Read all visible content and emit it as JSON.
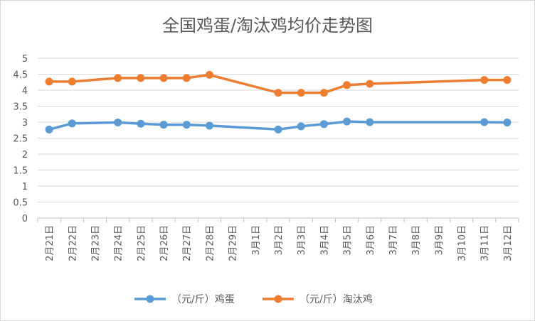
{
  "chart_data": {
    "type": "line",
    "title": "全国鸡蛋/淘汰鸡均价走势图",
    "xlabel": "",
    "ylabel": "",
    "ylim": [
      0,
      5
    ],
    "yticks": [
      "0",
      "0.5",
      "1",
      "1.5",
      "2",
      "2.5",
      "3",
      "3.5",
      "4",
      "4.5",
      "5"
    ],
    "grid": true,
    "legend_position": "bottom",
    "categories": [
      "2月21日",
      "2月22日",
      "2月23日",
      "2月24日",
      "2月25日",
      "2月26日",
      "2月27日",
      "2月28日",
      "2月29日",
      "3月1日",
      "3月2日",
      "3月3日",
      "3月4日",
      "3月5日",
      "3月6日",
      "3月7日",
      "3月8日",
      "3月9日",
      "3月10日",
      "3月11日",
      "3月12日"
    ],
    "series": [
      {
        "name": "（元/斤）鸡蛋",
        "color": "#5B9BD5",
        "values": [
          2.77,
          2.96,
          null,
          2.99,
          2.95,
          2.92,
          2.92,
          2.89,
          null,
          null,
          2.77,
          2.87,
          2.94,
          3.02,
          3.0,
          null,
          null,
          null,
          null,
          3.0,
          2.99
        ]
      },
      {
        "name": "（元/斤）淘汰鸡",
        "color": "#ED7D31",
        "values": [
          4.27,
          4.27,
          null,
          4.38,
          4.38,
          4.38,
          4.38,
          4.48,
          null,
          null,
          3.92,
          3.92,
          3.92,
          4.16,
          4.2,
          null,
          null,
          null,
          null,
          4.32,
          4.32
        ]
      }
    ]
  }
}
